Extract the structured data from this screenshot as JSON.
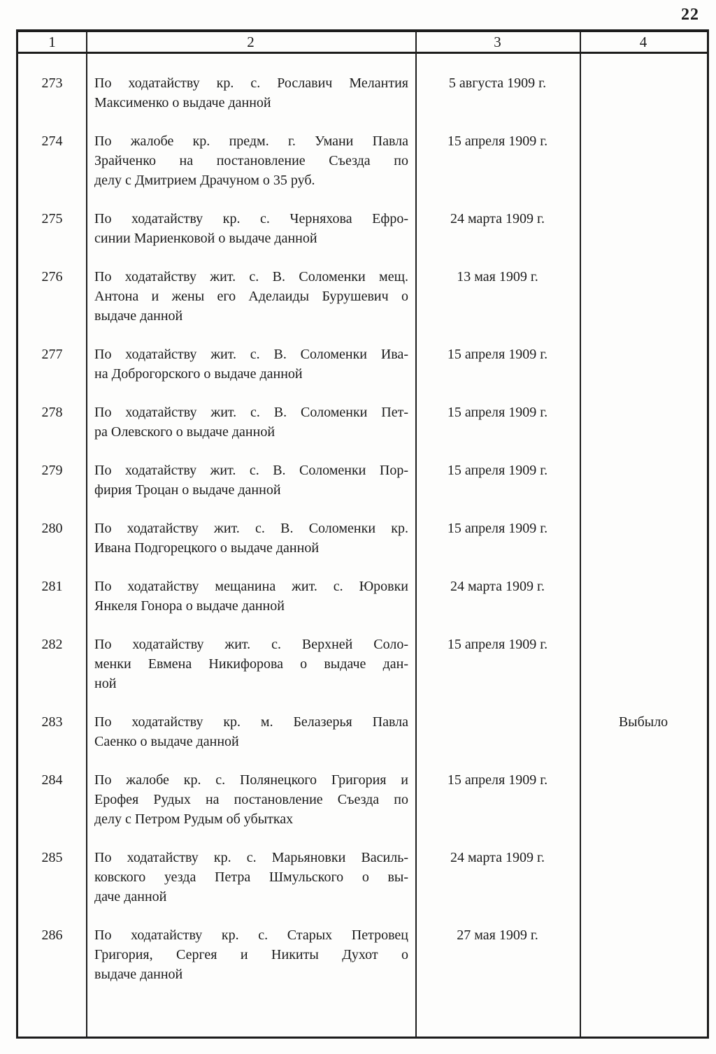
{
  "page": {
    "number": "22"
  },
  "table": {
    "headers": [
      "1",
      "2",
      "3",
      "4"
    ],
    "rows": [
      {
        "num": "273",
        "lines": [
          "По ходатайству кр. с. Рославич Мелантия",
          "Максименко о выдаче данной"
        ],
        "date": "5 августа 1909 г.",
        "note": ""
      },
      {
        "num": "274",
        "lines": [
          "По жалобе кр. предм. г. Умани Павла",
          "Зрайченко на постановление Съезда по",
          "делу с Дмитрием Драчуном о 35 руб."
        ],
        "date": "15 апреля 1909 г.",
        "note": ""
      },
      {
        "num": "275",
        "lines": [
          "По ходатайству кр. с. Черняхова Ефро-",
          "синии Мариенковой о выдаче данной"
        ],
        "date": "24 марта 1909 г.",
        "note": ""
      },
      {
        "num": "276",
        "lines": [
          "По ходатайству жит. с. В. Соломенки мещ.",
          "Антона и жены его Аделаиды Бурушевич о",
          "выдаче данной"
        ],
        "date": "13 мая 1909 г.",
        "note": ""
      },
      {
        "num": "277",
        "lines": [
          "По ходатайству жит. с. В. Соломенки Ива-",
          "на Доброгорского о выдаче данной"
        ],
        "date": "15 апреля 1909 г.",
        "note": ""
      },
      {
        "num": "278",
        "lines": [
          "По ходатайству жит. с. В. Соломенки Пет-",
          "ра Олевского о выдаче данной"
        ],
        "date": "15 апреля 1909 г.",
        "note": ""
      },
      {
        "num": "279",
        "lines": [
          "По ходатайству жит. с. В. Соломенки Пор-",
          "фирия Троцан о выдаче данной"
        ],
        "date": "15 апреля 1909 г.",
        "note": ""
      },
      {
        "num": "280",
        "lines": [
          "По ходатайству жит. с. В. Соломенки кр.",
          "Ивана Подгорецкого о выдаче данной"
        ],
        "date": "15 апреля 1909 г.",
        "note": ""
      },
      {
        "num": "281",
        "lines": [
          "По ходатайству мещанина жит. с. Юровки",
          "Янкеля Гонора о выдаче данной"
        ],
        "date": "24 марта 1909 г.",
        "note": ""
      },
      {
        "num": "282",
        "lines": [
          "По ходатайству жит. с. Верхней Соло-",
          "менки Евмена Никифорова о выдаче дан-",
          "ной"
        ],
        "date": "15 апреля 1909 г.",
        "note": ""
      },
      {
        "num": "283",
        "lines": [
          "По ходатайству кр. м. Белазерья Павла",
          "Саенко о выдаче данной"
        ],
        "date": "",
        "note": "Выбыло"
      },
      {
        "num": "284",
        "lines": [
          "По жалобе кр. с. Полянецкого Григория и",
          "Ерофея Рудых на постановление Съезда по",
          "делу с Петром Рудым об убытках"
        ],
        "date": "15 апреля 1909 г.",
        "note": ""
      },
      {
        "num": "285",
        "lines": [
          "По ходатайству кр. с. Марьяновки Василь-",
          "ковского уезда  Петра Шмульского о вы-",
          "даче данной"
        ],
        "date": "24 марта 1909 г.",
        "note": ""
      },
      {
        "num": "286",
        "lines": [
          "По ходатайству кр. с. Старых Петровец",
          "Григория, Сергея и Никиты Духот о",
          "выдаче данной"
        ],
        "date": "27 мая 1909 г.",
        "note": ""
      }
    ]
  }
}
